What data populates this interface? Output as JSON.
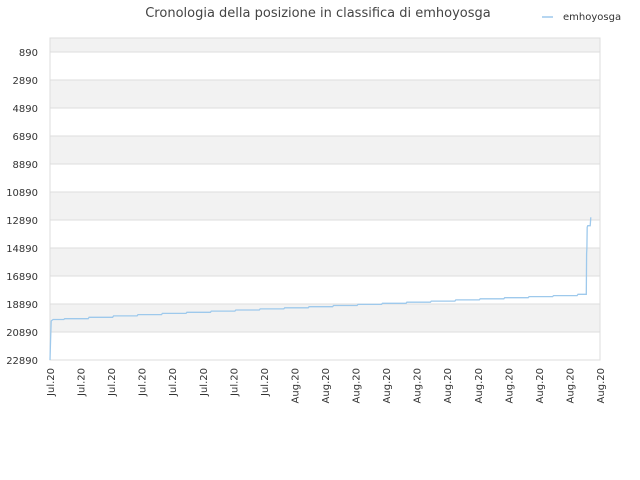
{
  "chart_data": {
    "type": "line",
    "title": "Cronologia della posizione in classifica di emhoyosga",
    "xlabel": "",
    "ylabel": "",
    "y_inverted": true,
    "ylim": [
      22890,
      890
    ],
    "y_ticks": [
      890,
      2890,
      4890,
      6890,
      8890,
      10890,
      12890,
      14890,
      16890,
      18890,
      20890,
      22890
    ],
    "x_tick_labels": [
      "Jul.20",
      "Jul.20",
      "Jul.20",
      "Jul.20",
      "Jul.20",
      "Jul.20",
      "Jul.20",
      "Jul.20",
      "Aug.20",
      "Aug.20",
      "Aug.20",
      "Aug.20",
      "Aug.20",
      "Aug.20",
      "Aug.20",
      "Aug.20",
      "Aug.20",
      "Aug.20",
      "Aug.20"
    ],
    "x_range": [
      0,
      18
    ],
    "grid": true,
    "legend_position": "top-right",
    "colors": {
      "series": "#9ec9ec",
      "band": "#f2f2f2",
      "grid": "#dddddd"
    },
    "series": [
      {
        "name": "emhoyosga",
        "points": [
          [
            0.0,
            22890
          ],
          [
            0.02,
            21400
          ],
          [
            0.04,
            20100
          ],
          [
            0.1,
            20000
          ],
          [
            0.45,
            20000
          ],
          [
            0.48,
            19940
          ],
          [
            1.25,
            19940
          ],
          [
            1.28,
            19840
          ],
          [
            2.05,
            19840
          ],
          [
            2.08,
            19740
          ],
          [
            2.85,
            19740
          ],
          [
            2.88,
            19650
          ],
          [
            3.65,
            19650
          ],
          [
            3.68,
            19560
          ],
          [
            4.45,
            19560
          ],
          [
            4.48,
            19480
          ],
          [
            5.25,
            19480
          ],
          [
            5.28,
            19400
          ],
          [
            6.05,
            19400
          ],
          [
            6.08,
            19320
          ],
          [
            6.85,
            19320
          ],
          [
            6.88,
            19240
          ],
          [
            7.65,
            19240
          ],
          [
            7.68,
            19160
          ],
          [
            8.45,
            19160
          ],
          [
            8.48,
            19080
          ],
          [
            9.25,
            19080
          ],
          [
            9.28,
            19000
          ],
          [
            10.05,
            19000
          ],
          [
            10.08,
            18920
          ],
          [
            10.85,
            18920
          ],
          [
            10.88,
            18840
          ],
          [
            11.65,
            18840
          ],
          [
            11.68,
            18760
          ],
          [
            12.45,
            18760
          ],
          [
            12.48,
            18680
          ],
          [
            13.25,
            18680
          ],
          [
            13.28,
            18600
          ],
          [
            14.05,
            18600
          ],
          [
            14.08,
            18520
          ],
          [
            14.85,
            18520
          ],
          [
            14.88,
            18440
          ],
          [
            15.65,
            18440
          ],
          [
            15.68,
            18360
          ],
          [
            16.45,
            18360
          ],
          [
            16.48,
            18290
          ],
          [
            17.25,
            18290
          ],
          [
            17.28,
            18200
          ],
          [
            17.55,
            18200
          ],
          [
            17.56,
            15300
          ],
          [
            17.57,
            14900
          ],
          [
            17.58,
            13400
          ],
          [
            17.6,
            13300
          ],
          [
            17.68,
            13300
          ],
          [
            17.7,
            12700
          ]
        ]
      }
    ]
  }
}
